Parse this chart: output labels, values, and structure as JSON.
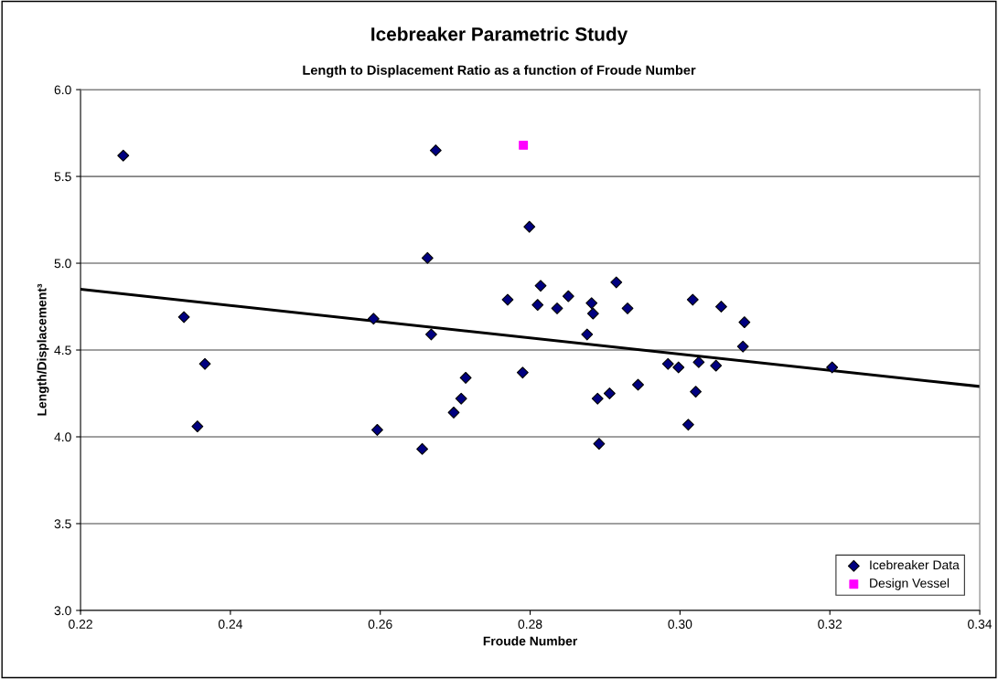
{
  "chart_data": {
    "type": "scatter",
    "title": "Icebreaker Parametric Study",
    "subtitle": "Length to Displacement Ratio as a function of Froude Number",
    "xlabel": "Froude Number",
    "ylabel": "Length/Displacement³",
    "series": [
      {
        "name": "Icebreaker Data",
        "color": "#000080",
        "marker": "diamond",
        "x": [
          0.2257,
          0.2338,
          0.2366,
          0.2356,
          0.2591,
          0.2596,
          0.2674,
          0.2799,
          0.2663,
          0.2814,
          0.277,
          0.281,
          0.2836,
          0.2851,
          0.2882,
          0.2884,
          0.2915,
          0.293,
          0.2876,
          0.2668,
          0.279,
          0.2714,
          0.2708,
          0.2698,
          0.2656,
          0.289,
          0.2906,
          0.2944,
          0.2892,
          0.2984,
          0.2998,
          0.3017,
          0.3055,
          0.3086,
          0.3084,
          0.3025,
          0.3048,
          0.3021,
          0.3011,
          0.3203
        ],
        "values": [
          5.62,
          4.69,
          4.42,
          4.06,
          4.68,
          4.04,
          5.65,
          5.21,
          5.03,
          4.87,
          4.79,
          4.76,
          4.74,
          4.81,
          4.77,
          4.71,
          4.89,
          4.74,
          4.59,
          4.59,
          4.37,
          4.34,
          4.22,
          4.14,
          3.93,
          4.22,
          4.25,
          4.3,
          3.96,
          4.42,
          4.4,
          4.79,
          4.75,
          4.66,
          4.52,
          4.43,
          4.41,
          4.26,
          4.07,
          4.4
        ]
      },
      {
        "name": "Design Vessel",
        "color": "#ff00ff",
        "marker": "square",
        "x": [
          0.2791
        ],
        "values": [
          5.68
        ]
      },
      {
        "type": "line",
        "color": "#000000",
        "x": [
          0.22,
          0.34
        ],
        "values": [
          4.85,
          4.29
        ]
      }
    ],
    "xlim": [
      0.22,
      0.34
    ],
    "xticks": [
      {
        "value": 0.22,
        "label": "0.22"
      },
      {
        "value": 0.24,
        "label": "0.24"
      },
      {
        "value": 0.26,
        "label": "0.26"
      },
      {
        "value": 0.28,
        "label": "0.28"
      },
      {
        "value": 0.3,
        "label": "0.30"
      },
      {
        "value": 0.32,
        "label": "0.32"
      },
      {
        "value": 0.34,
        "label": "0.34"
      }
    ],
    "ylim": [
      3.0,
      6.0
    ],
    "yticks": [
      {
        "value": 3.0,
        "label": "3.0"
      },
      {
        "value": 3.5,
        "label": "3.5"
      },
      {
        "value": 4.0,
        "label": "4.0"
      },
      {
        "value": 4.5,
        "label": "4.5"
      },
      {
        "value": 5.0,
        "label": "5.0"
      },
      {
        "value": 5.5,
        "label": "5.5"
      },
      {
        "value": 6.0,
        "label": "6.0"
      }
    ],
    "grid": "y",
    "legend": "bottom right"
  }
}
